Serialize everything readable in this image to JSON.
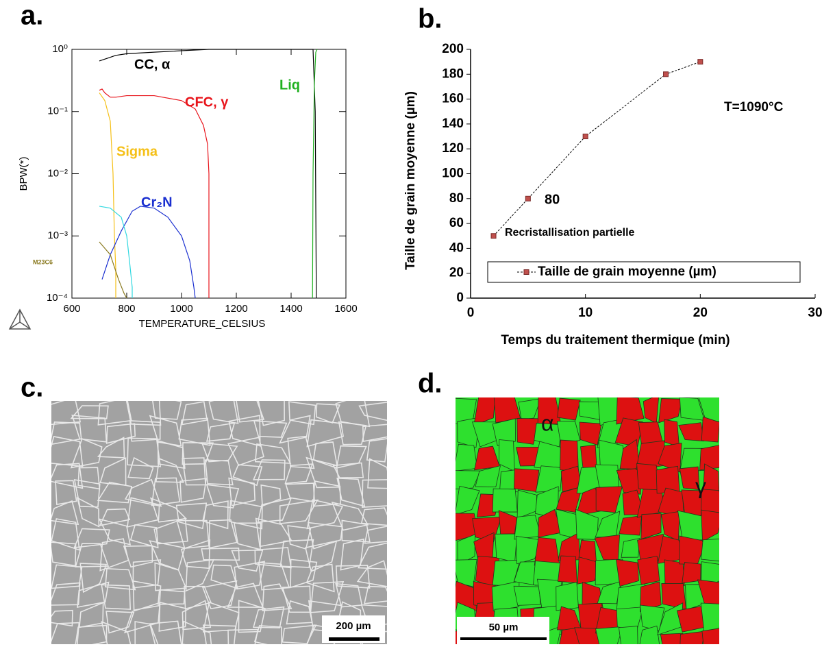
{
  "chart_data": [
    {
      "type": "line",
      "panel_label": "a.",
      "ylabel": "BPW(*)",
      "xlabel": "TEMPERATURE_CELSIUS",
      "xlim": [
        600,
        1600
      ],
      "xticks": [
        600,
        800,
        1000,
        1200,
        1400,
        1600
      ],
      "ylim": [
        0.0001,
        1
      ],
      "log_y": true,
      "yticks": [
        {
          "value": 0.0001,
          "label": "10⁻⁴"
        },
        {
          "value": 0.001,
          "label": "10⁻³"
        },
        {
          "value": 0.01,
          "label": "10⁻²"
        },
        {
          "value": 0.1,
          "label": "10⁻¹"
        },
        {
          "value": 1,
          "label": "10⁰"
        }
      ],
      "series": [
        {
          "name": "CC, α",
          "color": "#000000",
          "x": [
            700,
            730,
            760,
            800,
            900,
            1000,
            1100,
            1300,
            1480,
            1488,
            1492
          ],
          "values": [
            0.65,
            0.72,
            0.8,
            0.85,
            0.9,
            0.95,
            1,
            1,
            1,
            0.1,
            0.0001
          ]
        },
        {
          "name": "CFC, γ",
          "color": "#e8141b",
          "x": [
            700,
            710,
            720,
            740,
            760,
            800,
            900,
            1000,
            1050,
            1080,
            1095,
            1100,
            1100
          ],
          "values": [
            0.22,
            0.23,
            0.2,
            0.17,
            0.17,
            0.18,
            0.18,
            0.15,
            0.11,
            0.06,
            0.03,
            0.01,
            0.0001
          ]
        },
        {
          "name": "Sigma",
          "color": "#f5c018",
          "x": [
            700,
            720,
            740,
            750,
            755,
            760,
            760
          ],
          "values": [
            0.2,
            0.15,
            0.07,
            0.01,
            0.001,
            0.0003,
            0.0001
          ]
        },
        {
          "name": "Cr₂N",
          "color": "#1a2fd0",
          "x": [
            710,
            740,
            780,
            820,
            850,
            900,
            950,
            1000,
            1030,
            1045,
            1050
          ],
          "values": [
            0.0002,
            0.0005,
            0.0012,
            0.0025,
            0.003,
            0.0028,
            0.002,
            0.001,
            0.0004,
            0.00015,
            0.0001
          ]
        },
        {
          "color": "#2fd8e0",
          "x": [
            700,
            740,
            780,
            800,
            810,
            820,
            820
          ],
          "values": [
            0.003,
            0.0028,
            0.002,
            0.001,
            0.0004,
            0.00015,
            0.0001
          ]
        },
        {
          "name": "M23C6",
          "color": "#8a7a20",
          "x": [
            700,
            740,
            770,
            790,
            800
          ],
          "values": [
            0.0008,
            0.0005,
            0.0002,
            0.00012,
            0.0001
          ]
        },
        {
          "name": "Liq",
          "color": "#20b020",
          "x": [
            1478,
            1480,
            1485,
            1490,
            1495
          ],
          "values": [
            0.0001,
            0.01,
            0.3,
            0.9,
            1
          ]
        }
      ]
    },
    {
      "type": "line",
      "panel_label": "b.",
      "ylabel": "Taille de grain moyenne (µm)",
      "xlabel": "Temps du traitement thermique (min)",
      "xlim": [
        0,
        30
      ],
      "xticks": [
        0,
        10,
        20,
        30
      ],
      "ylim": [
        0,
        200
      ],
      "yticks": [
        0,
        20,
        40,
        60,
        80,
        100,
        120,
        140,
        160,
        180,
        200
      ],
      "x": [
        2,
        5,
        10,
        17,
        20
      ],
      "series": [
        {
          "name": "Taille de grain moyenne (µm)",
          "color": "#c0504d",
          "values": [
            50,
            80,
            130,
            180,
            190
          ]
        }
      ],
      "annotations": [
        "80",
        "Recristallisation partielle",
        "T=1090°C"
      ]
    }
  ],
  "panels": [
    {
      "label": "c.",
      "scale_bar": "200 µm"
    },
    {
      "label": "d.",
      "phase_labels": [
        "α",
        "γ"
      ],
      "scale_bar": "50 µm"
    }
  ]
}
